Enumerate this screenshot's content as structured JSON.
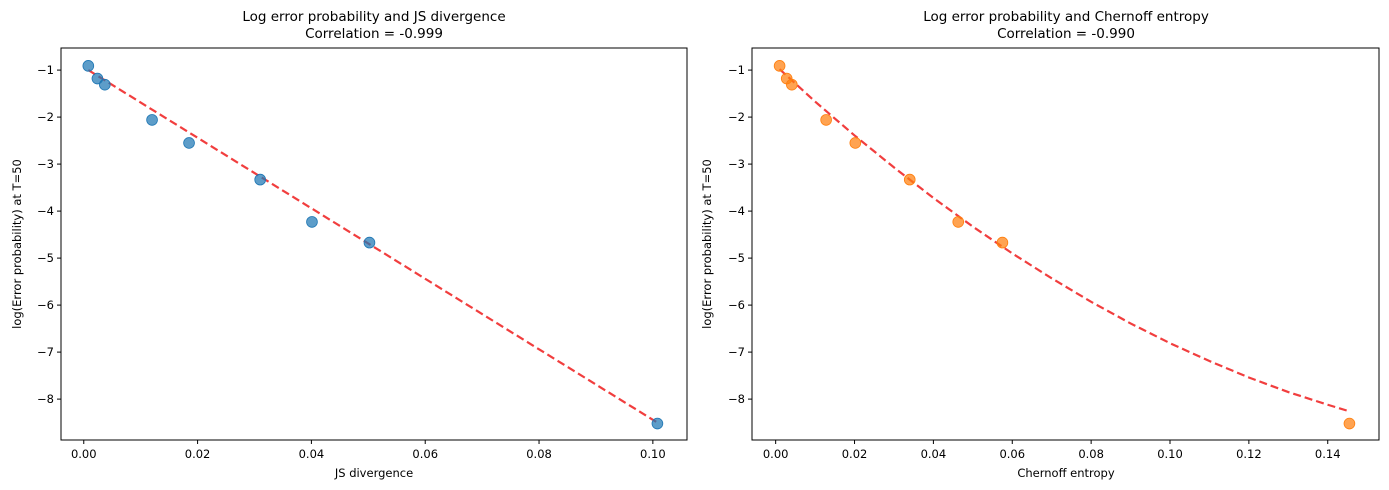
{
  "chart_data": [
    {
      "type": "scatter",
      "title": "Log error probability and JS divergence",
      "subtitle": "Correlation = -0.999",
      "xlabel": "JS divergence",
      "ylabel": "log(Error probability) at T=50",
      "xlim": [
        -0.004,
        0.106
      ],
      "ylim": [
        -8.87,
        -0.53
      ],
      "xticks": [
        0.0,
        0.02,
        0.04,
        0.06,
        0.08,
        0.1
      ],
      "xtick_labels": [
        "0.00",
        "0.02",
        "0.04",
        "0.06",
        "0.08",
        "0.10"
      ],
      "yticks": [
        -1,
        -2,
        -3,
        -4,
        -5,
        -6,
        -7,
        -8
      ],
      "ytick_labels": [
        "−1",
        "−2",
        "−3",
        "−4",
        "−5",
        "−6",
        "−7",
        "−8"
      ],
      "grid": false,
      "point_color": "#1f77b4",
      "series": [
        {
          "x": [
            0.0008,
            0.0024,
            0.0037,
            0.012,
            0.0185,
            0.031,
            0.0401,
            0.0502,
            0.1008
          ],
          "y": [
            -0.91,
            -1.18,
            -1.31,
            -2.06,
            -2.55,
            -3.33,
            -4.23,
            -4.67,
            -8.52
          ]
        }
      ],
      "fit_line": {
        "color": "#ee1c1c",
        "style": "dashed",
        "x": [
          0.0008,
          0.1008
        ],
        "y": [
          -1.0,
          -8.5
        ]
      }
    },
    {
      "type": "scatter",
      "title": "Log error probability and Chernoff entropy",
      "subtitle": "Correlation = -0.990",
      "xlabel": "Chernoff entropy",
      "ylabel": "log(Error probability) at T=50",
      "xlim": [
        -0.006,
        0.153
      ],
      "ylim": [
        -8.87,
        -0.53
      ],
      "xticks": [
        0.0,
        0.02,
        0.04,
        0.06,
        0.08,
        0.1,
        0.12,
        0.14
      ],
      "xtick_labels": [
        "0.00",
        "0.02",
        "0.04",
        "0.06",
        "0.08",
        "0.10",
        "0.12",
        "0.14"
      ],
      "yticks": [
        -1,
        -2,
        -3,
        -4,
        -5,
        -6,
        -7,
        -8
      ],
      "ytick_labels": [
        "−1",
        "−2",
        "−3",
        "−4",
        "−5",
        "−6",
        "−7",
        "−8"
      ],
      "grid": false,
      "point_color": "#ff7f0e",
      "series": [
        {
          "x": [
            0.001,
            0.0028,
            0.0041,
            0.0128,
            0.0202,
            0.034,
            0.0463,
            0.0575,
            0.1455
          ],
          "y": [
            -0.91,
            -1.18,
            -1.31,
            -2.06,
            -2.55,
            -3.33,
            -4.23,
            -4.67,
            -8.52
          ]
        }
      ],
      "fit_line": {
        "color": "#ee1c1c",
        "style": "dashed",
        "x": [
          0.001,
          0.01,
          0.02,
          0.03,
          0.04,
          0.05,
          0.06,
          0.07,
          0.08,
          0.09,
          0.1,
          0.11,
          0.12,
          0.13,
          0.14,
          0.1455
        ],
        "y": [
          -0.98,
          -1.67,
          -2.39,
          -3.07,
          -3.72,
          -4.33,
          -4.9,
          -5.43,
          -5.93,
          -6.39,
          -6.81,
          -7.19,
          -7.54,
          -7.85,
          -8.12,
          -8.26
        ]
      }
    }
  ]
}
